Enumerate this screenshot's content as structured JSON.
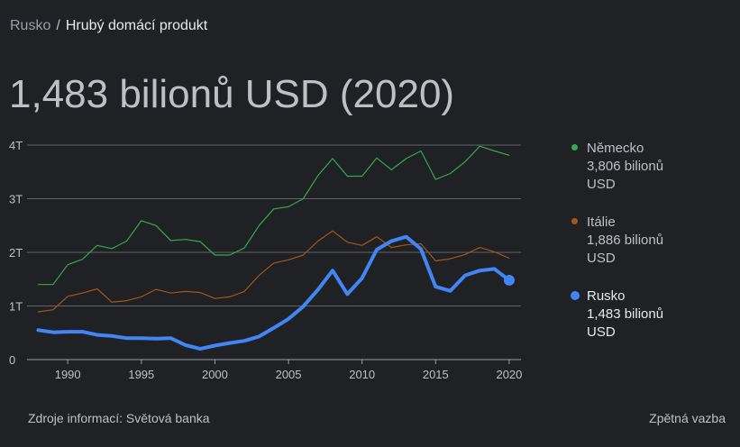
{
  "breadcrumb": {
    "parent": "Rusko",
    "separator": "/",
    "current": "Hrubý domácí produkt"
  },
  "headline": "1,483 bilionů USD (2020)",
  "footer": {
    "source": "Zdroje informací: Světová banka",
    "feedback": "Zpětná vazba"
  },
  "legend": [
    {
      "name": "Německo",
      "value": "3,806 bilionů USD",
      "color": "#34a853"
    },
    {
      "name": "Itálie",
      "value": "1,886 bilionů USD",
      "color": "#a0581c"
    },
    {
      "name": "Rusko",
      "value": "1,483 bilionů USD",
      "color": "#4285f4"
    }
  ],
  "chart_data": {
    "type": "line",
    "x": [
      1988,
      1989,
      1990,
      1991,
      1992,
      1993,
      1994,
      1995,
      1996,
      1997,
      1998,
      1999,
      2000,
      2001,
      2002,
      2003,
      2004,
      2005,
      2006,
      2007,
      2008,
      2009,
      2010,
      2011,
      2012,
      2013,
      2014,
      2015,
      2016,
      2017,
      2018,
      2019,
      2020
    ],
    "xticks": [
      1990,
      1995,
      2000,
      2005,
      2010,
      2015,
      2020
    ],
    "xlim": [
      1987.6,
      2020.8
    ],
    "ylim": [
      0,
      4
    ],
    "yticks": [
      0,
      1,
      2,
      3,
      4
    ],
    "ytick_labels": [
      "0",
      "1T",
      "2T",
      "3T",
      "4T"
    ],
    "grid": true,
    "legend_position": "right",
    "series": [
      {
        "name": "Německo",
        "color": "#34a853",
        "values": [
          1.4,
          1.4,
          1.77,
          1.87,
          2.13,
          2.07,
          2.21,
          2.59,
          2.5,
          2.22,
          2.24,
          2.2,
          1.95,
          1.95,
          2.08,
          2.5,
          2.81,
          2.85,
          3.0,
          3.43,
          3.75,
          3.42,
          3.42,
          3.76,
          3.54,
          3.75,
          3.89,
          3.36,
          3.47,
          3.69,
          3.98,
          3.89,
          3.81
        ]
      },
      {
        "name": "Itálie",
        "color": "#a0581c",
        "values": [
          0.89,
          0.93,
          1.18,
          1.24,
          1.32,
          1.07,
          1.1,
          1.17,
          1.31,
          1.24,
          1.27,
          1.25,
          1.14,
          1.17,
          1.27,
          1.57,
          1.8,
          1.86,
          1.95,
          2.21,
          2.4,
          2.19,
          2.13,
          2.29,
          2.09,
          2.14,
          2.16,
          1.84,
          1.88,
          1.96,
          2.09,
          2.01,
          1.89
        ]
      },
      {
        "name": "Rusko",
        "color": "#4285f4",
        "values": [
          0.55,
          0.51,
          0.52,
          0.52,
          0.46,
          0.44,
          0.4,
          0.4,
          0.39,
          0.4,
          0.27,
          0.2,
          0.26,
          0.31,
          0.35,
          0.43,
          0.59,
          0.76,
          0.99,
          1.3,
          1.66,
          1.22,
          1.52,
          2.05,
          2.21,
          2.29,
          2.06,
          1.36,
          1.28,
          1.57,
          1.66,
          1.69,
          1.48
        ]
      }
    ]
  }
}
